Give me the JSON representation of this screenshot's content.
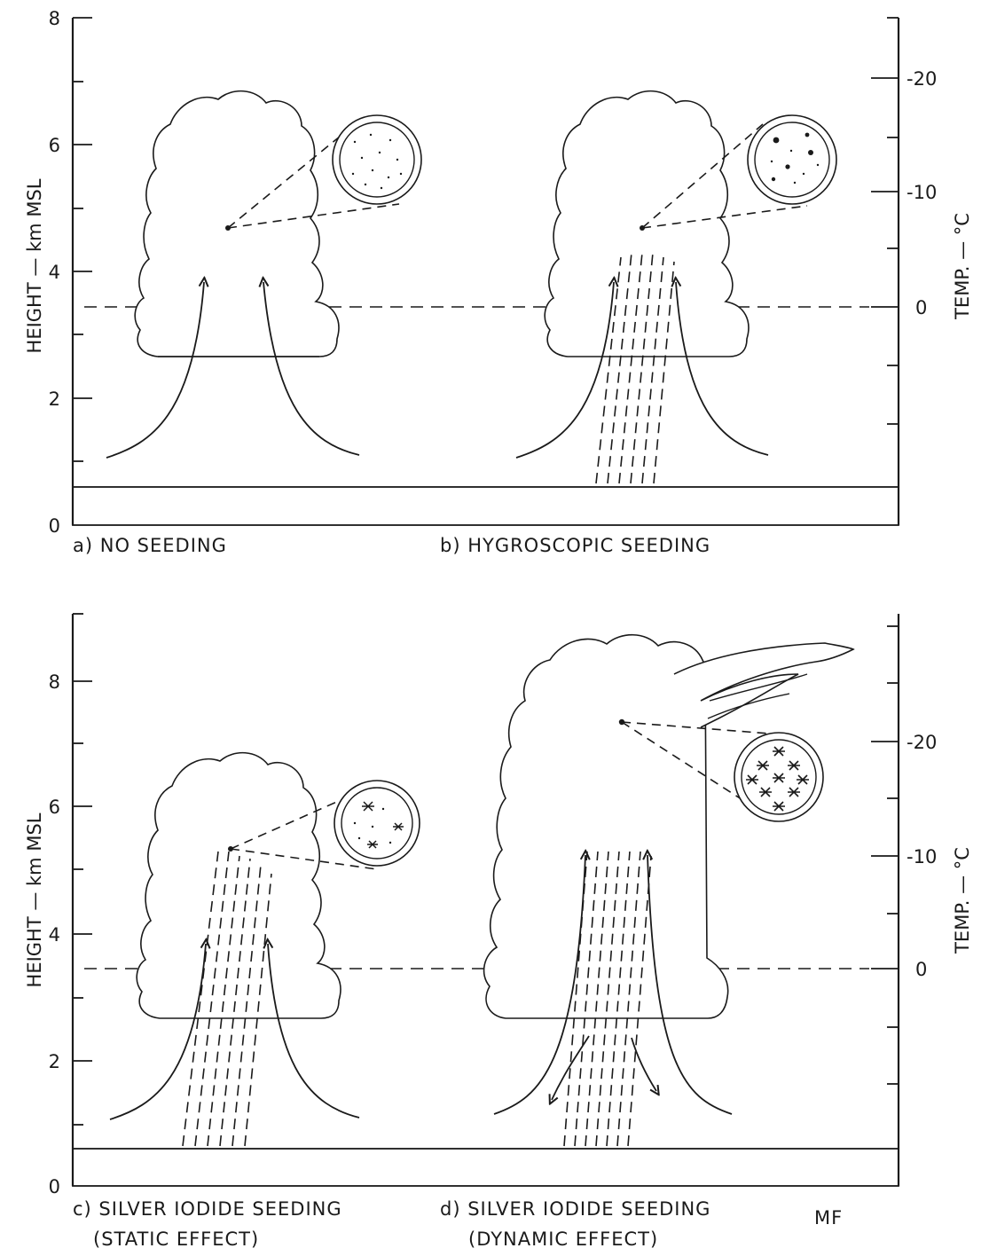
{
  "axes": {
    "height_label": "HEIGHT — km MSL",
    "temp_label": "TEMP. — °C"
  },
  "top": {
    "height_ticks": [
      "0",
      "2",
      "4",
      "6",
      "8"
    ],
    "temp_ticks": [
      "-20",
      "-10",
      "0"
    ]
  },
  "bottom": {
    "height_ticks": [
      "0",
      "2",
      "4",
      "6",
      "8"
    ],
    "temp_ticks": [
      "-20",
      "-10",
      "0"
    ]
  },
  "panels": {
    "a": {
      "caption": "a) NO SEEDING"
    },
    "b": {
      "caption": "b) HYGROSCOPIC SEEDING"
    },
    "c": {
      "caption_line1": "c) SILVER IODIDE SEEDING",
      "caption_line2": "(STATIC EFFECT)"
    },
    "d": {
      "caption_line1": "d) SILVER IODIDE SEEDING",
      "caption_line2": "(DYNAMIC EFFECT)"
    }
  },
  "signature": "MF"
}
